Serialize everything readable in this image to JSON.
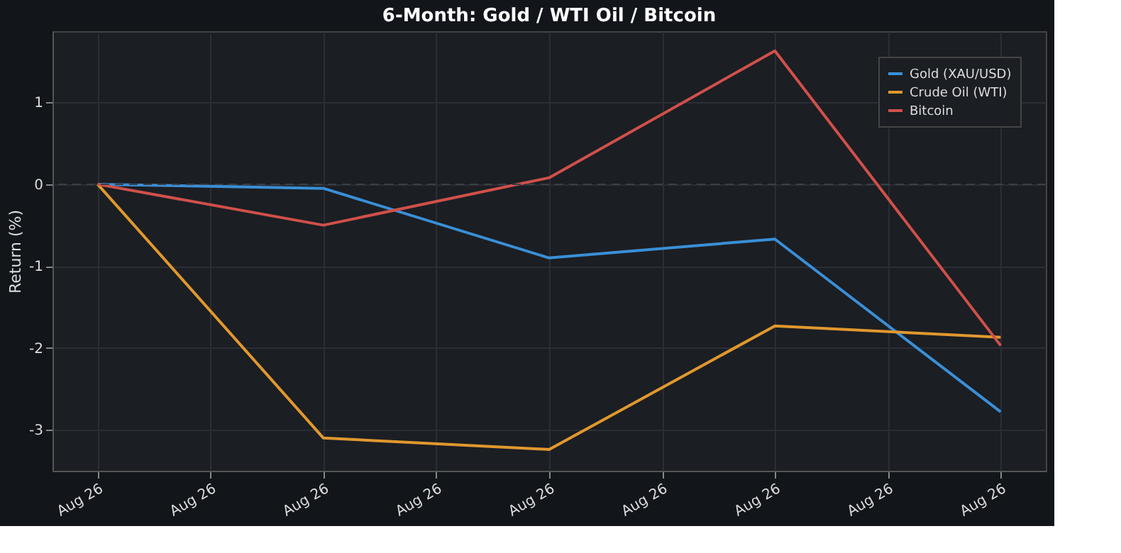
{
  "chart_data": {
    "type": "line",
    "title": "6-Month: Gold / WTI Oil / Bitcoin",
    "ylabel": "Return (%)",
    "categories": [
      "Aug 26",
      "Aug 26",
      "Aug 26",
      "Aug 26",
      "Aug 26",
      "Aug 26",
      "Aug 26",
      "Aug 26",
      "Aug 26"
    ],
    "ylim": [
      -3.5,
      1.87
    ],
    "yticks": [
      -3,
      -2,
      -1,
      0,
      1
    ],
    "series": [
      {
        "name": "Gold (XAU/USD)",
        "color": "#3a8fd6",
        "values": [
          0,
          null,
          -0.05,
          null,
          -0.9,
          null,
          -0.67,
          null,
          -2.78
        ]
      },
      {
        "name": "Crude Oil (WTI)",
        "color": "#e0982e",
        "values": [
          0,
          null,
          -3.1,
          null,
          -3.24,
          null,
          -1.73,
          null,
          -1.87
        ]
      },
      {
        "name": "Bitcoin",
        "color": "#d0504a",
        "values": [
          0,
          null,
          -0.5,
          null,
          0.08,
          null,
          1.63,
          null,
          -1.97
        ]
      }
    ],
    "ref_lines": [
      {
        "axis": "y",
        "value": 0,
        "color": "#3a3f47",
        "line_style": "dashed"
      }
    ],
    "grid": true,
    "legend": "top right",
    "marker": "none",
    "line_style": "solid"
  }
}
